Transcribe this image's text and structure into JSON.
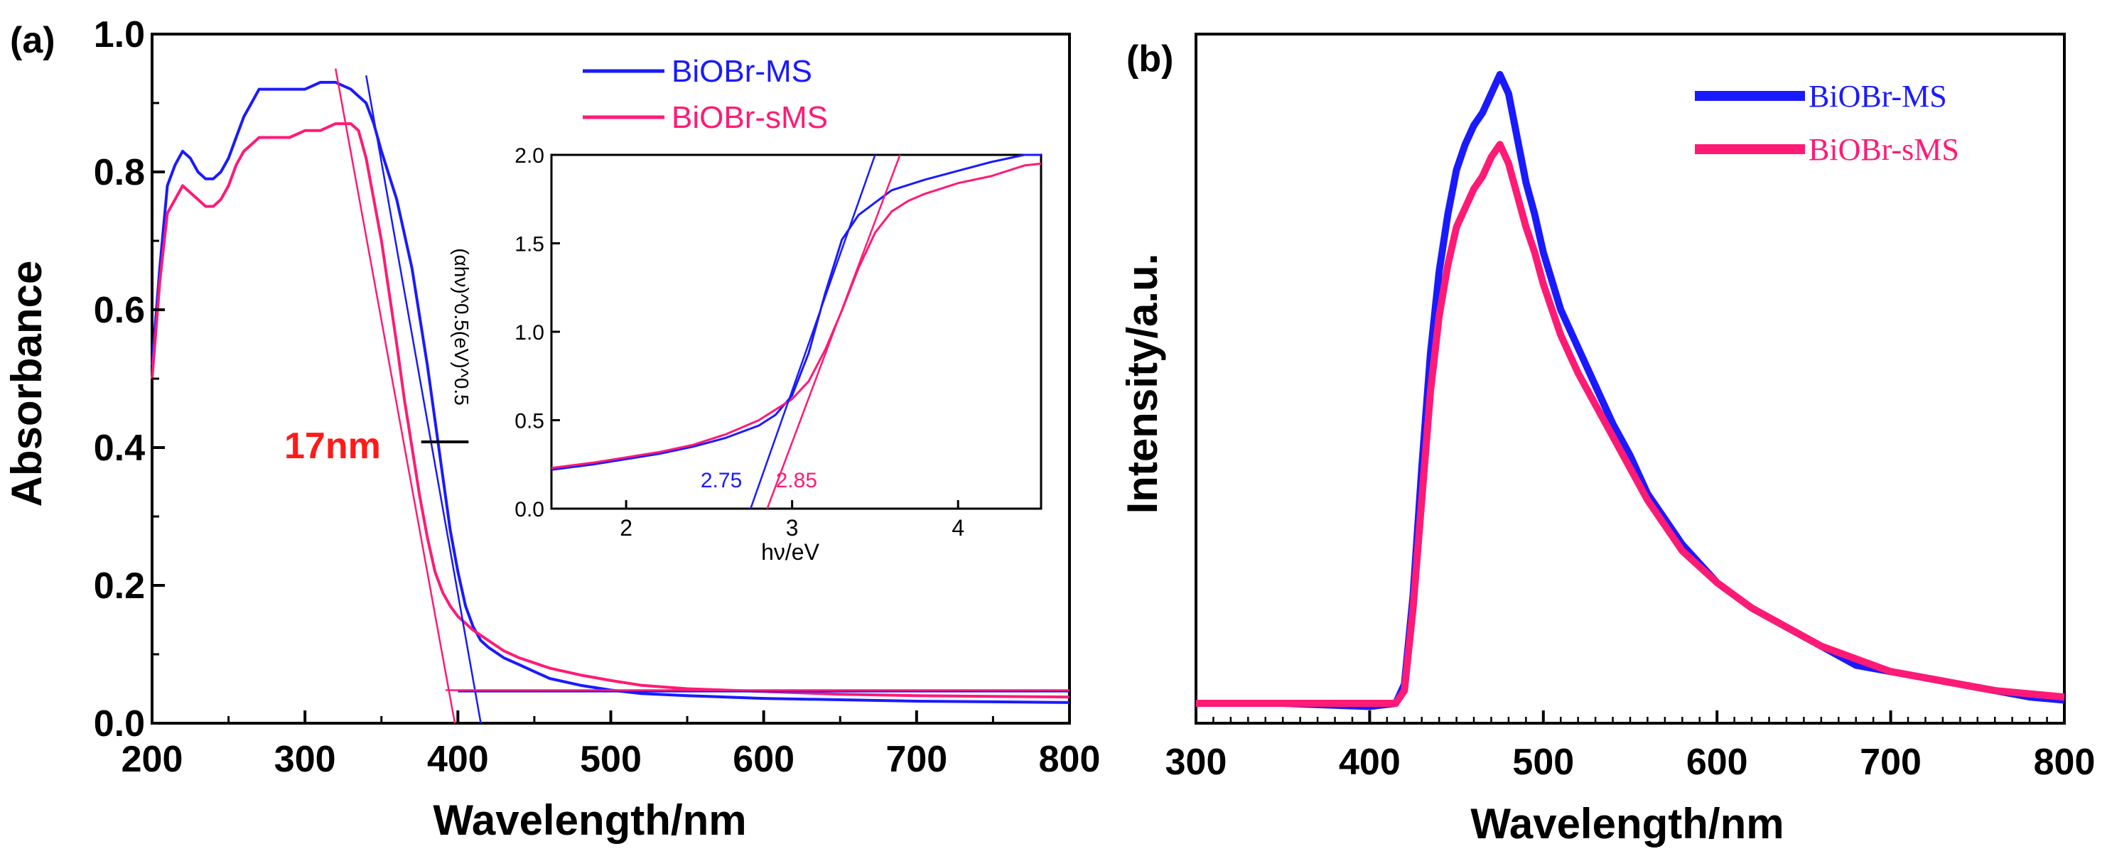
{
  "colors": {
    "blue": "#1a1aff",
    "pink": "#ff1a75",
    "axis": "#000000",
    "red_label": "#ff1a1a"
  },
  "chart_data": [
    {
      "panel": "(a)",
      "type": "line",
      "xlabel": "Wavelength/nm",
      "ylabel": "Absorbance",
      "xlim": [
        200,
        800
      ],
      "ylim": [
        0.0,
        1.0
      ],
      "xticks": [
        200,
        300,
        400,
        500,
        600,
        700,
        800
      ],
      "xtick_labels": [
        "200",
        "300",
        "400",
        "500",
        "600",
        "700",
        "800"
      ],
      "yticks": [
        0.0,
        0.2,
        0.4,
        0.6,
        0.8,
        1.0
      ],
      "ytick_labels": [
        "0.0",
        "0.2",
        "0.4",
        "0.6",
        "0.8",
        "1.0"
      ],
      "legend": [
        "BiOBr-MS",
        "BiOBr-sMS"
      ],
      "legend_position": "top-right",
      "annotation": {
        "text": "17nm",
        "x_from": 383,
        "x_to": 400,
        "y": 0.4
      },
      "series": [
        {
          "name": "BiOBr-MS",
          "color": "#1a1aff",
          "x": [
            200,
            205,
            210,
            215,
            220,
            225,
            230,
            235,
            240,
            245,
            250,
            255,
            260,
            265,
            270,
            280,
            290,
            300,
            310,
            320,
            330,
            340,
            345,
            350,
            360,
            370,
            380,
            385,
            390,
            395,
            400,
            405,
            410,
            415,
            420,
            430,
            440,
            450,
            460,
            480,
            500,
            520,
            550,
            600,
            650,
            700,
            750,
            800
          ],
          "y": [
            0.52,
            0.66,
            0.78,
            0.81,
            0.83,
            0.82,
            0.8,
            0.79,
            0.79,
            0.8,
            0.82,
            0.85,
            0.88,
            0.9,
            0.92,
            0.92,
            0.92,
            0.92,
            0.93,
            0.93,
            0.92,
            0.9,
            0.87,
            0.83,
            0.76,
            0.66,
            0.52,
            0.44,
            0.36,
            0.28,
            0.22,
            0.17,
            0.14,
            0.12,
            0.11,
            0.095,
            0.085,
            0.075,
            0.065,
            0.055,
            0.048,
            0.043,
            0.04,
            0.036,
            0.034,
            0.032,
            0.031,
            0.03
          ]
        },
        {
          "name": "BiOBr-sMS",
          "color": "#ff1a75",
          "x": [
            200,
            205,
            210,
            215,
            220,
            225,
            230,
            235,
            240,
            245,
            250,
            255,
            260,
            265,
            270,
            280,
            290,
            300,
            310,
            320,
            325,
            330,
            335,
            340,
            350,
            360,
            365,
            370,
            375,
            380,
            385,
            390,
            395,
            400,
            410,
            420,
            430,
            440,
            460,
            480,
            500,
            520,
            550,
            600,
            650,
            700,
            750,
            800
          ],
          "y": [
            0.5,
            0.64,
            0.74,
            0.76,
            0.78,
            0.77,
            0.76,
            0.75,
            0.75,
            0.76,
            0.78,
            0.81,
            0.83,
            0.84,
            0.85,
            0.85,
            0.85,
            0.86,
            0.86,
            0.87,
            0.87,
            0.87,
            0.86,
            0.82,
            0.7,
            0.55,
            0.47,
            0.4,
            0.33,
            0.27,
            0.22,
            0.19,
            0.17,
            0.155,
            0.135,
            0.12,
            0.105,
            0.095,
            0.08,
            0.07,
            0.062,
            0.055,
            0.05,
            0.046,
            0.042,
            0.04,
            0.039,
            0.038
          ]
        }
      ],
      "tangent_lines": [
        {
          "series": "BiOBr-MS",
          "x": [
            340,
            415
          ],
          "y": [
            0.94,
            0.0
          ]
        },
        {
          "series": "BiOBr-MS",
          "x": [
            400,
            800
          ],
          "y": [
            0.046,
            0.046
          ]
        },
        {
          "series": "BiOBr-sMS",
          "x": [
            320,
            398
          ],
          "y": [
            0.95,
            0.0
          ]
        },
        {
          "series": "BiOBr-sMS",
          "x": [
            392,
            800
          ],
          "y": [
            0.048,
            0.048
          ]
        }
      ],
      "inset": {
        "type": "line",
        "xlabel": "hν/eV",
        "ylabel": "(αhν)^0.5(eV)^0.5",
        "xlim": [
          1.55,
          4.5
        ],
        "ylim": [
          0.0,
          2.0
        ],
        "xticks": [
          2,
          3,
          4
        ],
        "xtick_labels": [
          "2",
          "3",
          "4"
        ],
        "yticks": [
          0.0,
          0.5,
          1.0,
          1.5,
          2.0
        ],
        "ytick_labels": [
          "0.0",
          "0.5",
          "1.0",
          "1.5",
          "2.0"
        ],
        "bandgap_labels": [
          {
            "text": "2.75",
            "x": 2.75,
            "series": "BiOBr-MS"
          },
          {
            "text": "2.85",
            "x": 2.85,
            "series": "BiOBr-sMS"
          }
        ],
        "series": [
          {
            "name": "BiOBr-MS",
            "x": [
              1.55,
              1.8,
              2.0,
              2.2,
              2.4,
              2.6,
              2.8,
              2.9,
              3.0,
              3.1,
              3.2,
              3.3,
              3.4,
              3.5,
              3.6,
              3.8,
              4.0,
              4.2,
              4.4,
              4.5
            ],
            "y": [
              0.22,
              0.25,
              0.28,
              0.31,
              0.35,
              0.4,
              0.47,
              0.53,
              0.64,
              0.88,
              1.22,
              1.52,
              1.66,
              1.73,
              1.8,
              1.86,
              1.91,
              1.96,
              2.0,
              2.0
            ]
          },
          {
            "name": "BiOBr-sMS",
            "x": [
              1.55,
              1.8,
              2.0,
              2.2,
              2.4,
              2.6,
              2.8,
              2.9,
              3.0,
              3.1,
              3.2,
              3.3,
              3.4,
              3.5,
              3.6,
              3.7,
              3.8,
              4.0,
              4.2,
              4.4,
              4.5
            ],
            "y": [
              0.23,
              0.26,
              0.29,
              0.32,
              0.36,
              0.42,
              0.5,
              0.56,
              0.62,
              0.72,
              0.9,
              1.12,
              1.36,
              1.56,
              1.68,
              1.74,
              1.78,
              1.84,
              1.88,
              1.94,
              1.95
            ]
          }
        ],
        "tangent_lines": [
          {
            "series": "BiOBr-MS",
            "x": [
              2.75,
              3.5
            ],
            "y": [
              0.0,
              2.0
            ]
          },
          {
            "series": "BiOBr-sMS",
            "x": [
              2.85,
              3.65
            ],
            "y": [
              0.0,
              2.0
            ]
          }
        ]
      }
    },
    {
      "panel": "(b)",
      "type": "line",
      "xlabel": "Wavelength/nm",
      "ylabel": "Intensity/a.u.",
      "xlim": [
        300,
        800
      ],
      "ylim": [
        0,
        1.0
      ],
      "yticks_shown": false,
      "xticks": [
        300,
        400,
        500,
        600,
        700,
        800
      ],
      "xtick_labels": [
        "300",
        "400",
        "500",
        "600",
        "700",
        "800"
      ],
      "legend": [
        "BiOBr-MS",
        "BiOBr-sMS"
      ],
      "legend_position": "top-right",
      "series": [
        {
          "name": "BiOBr-MS",
          "color": "#1a1aff",
          "x": [
            300,
            350,
            400,
            415,
            420,
            425,
            430,
            435,
            440,
            445,
            450,
            455,
            460,
            465,
            470,
            475,
            480,
            485,
            490,
            495,
            500,
            510,
            520,
            530,
            540,
            550,
            560,
            570,
            580,
            600,
            620,
            640,
            660,
            680,
            700,
            720,
            740,
            760,
            780,
            800
          ],
          "y": [
            0.0,
            0.0,
            -0.005,
            0.0,
            0.03,
            0.17,
            0.37,
            0.55,
            0.68,
            0.77,
            0.84,
            0.88,
            0.91,
            0.93,
            0.96,
            0.99,
            0.96,
            0.89,
            0.82,
            0.77,
            0.71,
            0.62,
            0.56,
            0.5,
            0.44,
            0.39,
            0.33,
            0.29,
            0.25,
            0.19,
            0.15,
            0.12,
            0.09,
            0.06,
            0.05,
            0.04,
            0.03,
            0.02,
            0.01,
            0.005
          ]
        },
        {
          "name": "BiOBr-sMS",
          "color": "#ff1a75",
          "x": [
            300,
            350,
            400,
            415,
            420,
            425,
            430,
            435,
            440,
            445,
            450,
            455,
            460,
            465,
            470,
            475,
            480,
            485,
            490,
            495,
            500,
            510,
            520,
            530,
            540,
            550,
            560,
            570,
            580,
            600,
            620,
            640,
            660,
            680,
            700,
            720,
            740,
            760,
            780,
            800
          ],
          "y": [
            0.0,
            0.0,
            0.0,
            0.0,
            0.02,
            0.15,
            0.32,
            0.49,
            0.61,
            0.69,
            0.75,
            0.78,
            0.81,
            0.83,
            0.86,
            0.88,
            0.85,
            0.8,
            0.75,
            0.71,
            0.66,
            0.58,
            0.52,
            0.47,
            0.42,
            0.37,
            0.32,
            0.28,
            0.24,
            0.19,
            0.15,
            0.12,
            0.09,
            0.07,
            0.05,
            0.04,
            0.03,
            0.02,
            0.015,
            0.01
          ]
        }
      ]
    }
  ]
}
